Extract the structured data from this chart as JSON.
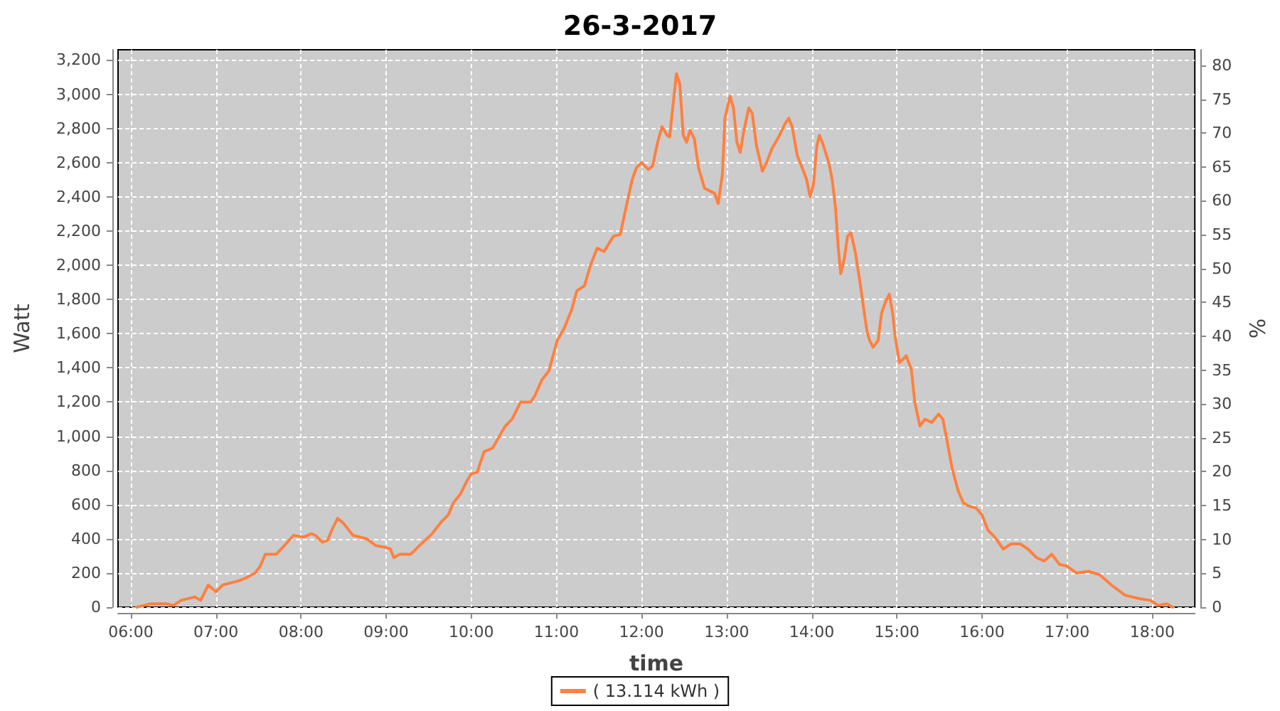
{
  "chart_data": {
    "type": "line",
    "title": "26-3-2017",
    "xlabel": "time",
    "ylabel": "Watt",
    "y2label": "%",
    "xlim": [
      5.85,
      18.5
    ],
    "xticks": [
      {
        "value": 6,
        "label": "06:00"
      },
      {
        "value": 7,
        "label": "07:00"
      },
      {
        "value": 8,
        "label": "08:00"
      },
      {
        "value": 9,
        "label": "09:00"
      },
      {
        "value": 10,
        "label": "10:00"
      },
      {
        "value": 11,
        "label": "11:00"
      },
      {
        "value": 12,
        "label": "12:00"
      },
      {
        "value": 13,
        "label": "13:00"
      },
      {
        "value": 14,
        "label": "14:00"
      },
      {
        "value": 15,
        "label": "15:00"
      },
      {
        "value": 16,
        "label": "16:00"
      },
      {
        "value": 17,
        "label": "17:00"
      },
      {
        "value": 18,
        "label": "18:00"
      }
    ],
    "ylim": [
      0,
      3260
    ],
    "yticks": [
      0,
      200,
      400,
      600,
      800,
      {
        "value": 1000,
        "label": "1,000"
      },
      {
        "value": 1200,
        "label": "1,200"
      },
      {
        "value": 1400,
        "label": "1,400"
      },
      {
        "value": 1600,
        "label": "1,600"
      },
      {
        "value": 1800,
        "label": "1,800"
      },
      {
        "value": 2000,
        "label": "2,000"
      },
      {
        "value": 2200,
        "label": "2,200"
      },
      {
        "value": 2400,
        "label": "2,400"
      },
      {
        "value": 2600,
        "label": "2,600"
      },
      {
        "value": 2800,
        "label": "2,800"
      },
      {
        "value": 3000,
        "label": "3,000"
      },
      {
        "value": 3200,
        "label": "3,200"
      }
    ],
    "y2lim": [
      0,
      82.3
    ],
    "y2ticks": [
      0,
      5,
      10,
      15,
      20,
      25,
      30,
      35,
      40,
      45,
      50,
      55,
      60,
      65,
      70,
      75,
      80
    ],
    "grid": true,
    "legend": "bottom",
    "x": [
      6.07,
      6.23,
      6.42,
      6.5,
      6.59,
      6.75,
      6.82,
      6.91,
      7.0,
      7.08,
      7.24,
      7.35,
      7.46,
      7.52,
      7.58,
      7.71,
      7.84,
      7.91,
      8.03,
      8.12,
      8.17,
      8.25,
      8.31,
      8.36,
      8.43,
      8.5,
      8.61,
      8.77,
      8.88,
      8.99,
      9.05,
      9.09,
      9.16,
      9.29,
      9.37,
      9.54,
      9.65,
      9.73,
      9.79,
      9.87,
      9.95,
      10.0,
      10.07,
      10.15,
      10.25,
      10.33,
      10.4,
      10.48,
      10.58,
      10.7,
      10.75,
      10.83,
      10.91,
      11.01,
      11.09,
      11.18,
      11.24,
      11.33,
      11.4,
      11.48,
      11.56,
      11.67,
      11.75,
      11.81,
      11.89,
      11.94,
      12.0,
      12.08,
      12.13,
      12.19,
      12.24,
      12.3,
      12.33,
      12.36,
      12.41,
      12.45,
      12.49,
      12.53,
      12.57,
      12.62,
      12.67,
      12.74,
      12.82,
      12.86,
      12.9,
      12.95,
      12.98,
      13.04,
      13.08,
      13.12,
      13.16,
      13.2,
      13.26,
      13.3,
      13.35,
      13.42,
      13.47,
      13.53,
      13.61,
      13.69,
      13.73,
      13.77,
      13.83,
      13.88,
      13.94,
      13.98,
      14.02,
      14.06,
      14.09,
      14.13,
      14.2,
      14.24,
      14.28,
      14.31,
      14.34,
      14.38,
      14.42,
      14.46,
      14.51,
      14.57,
      14.62,
      14.65,
      14.68,
      14.72,
      14.78,
      14.82,
      14.87,
      14.91,
      14.95,
      14.98,
      15.03,
      15.11,
      15.17,
      15.21,
      15.27,
      15.33,
      15.41,
      15.49,
      15.54,
      15.59,
      15.65,
      15.72,
      15.78,
      15.85,
      15.93,
      16.0,
      16.07,
      16.15,
      16.25,
      16.34,
      16.45,
      16.54,
      16.64,
      16.73,
      16.82,
      16.91,
      17.0,
      17.11,
      17.25,
      17.38,
      17.52,
      17.68,
      17.85,
      17.98,
      18.07,
      18.17,
      18.24
    ],
    "series": [
      {
        "name": "( 13.114 kWh )",
        "color": "#ff8040",
        "values": [
          0,
          20,
          20,
          10,
          40,
          60,
          40,
          130,
          90,
          130,
          150,
          170,
          200,
          240,
          310,
          310,
          380,
          420,
          410,
          430,
          420,
          380,
          390,
          450,
          520,
          490,
          420,
          400,
          360,
          350,
          340,
          290,
          310,
          310,
          350,
          430,
          500,
          540,
          610,
          660,
          740,
          780,
          790,
          910,
          930,
          1000,
          1060,
          1100,
          1200,
          1200,
          1240,
          1330,
          1380,
          1560,
          1630,
          1740,
          1850,
          1880,
          2000,
          2100,
          2080,
          2170,
          2180,
          2320,
          2500,
          2570,
          2600,
          2560,
          2580,
          2720,
          2810,
          2760,
          2750,
          2890,
          3120,
          3060,
          2760,
          2720,
          2790,
          2740,
          2570,
          2450,
          2430,
          2420,
          2360,
          2530,
          2860,
          2990,
          2920,
          2720,
          2660,
          2780,
          2920,
          2890,
          2700,
          2550,
          2600,
          2680,
          2750,
          2830,
          2860,
          2810,
          2640,
          2580,
          2500,
          2400,
          2470,
          2700,
          2760,
          2710,
          2600,
          2500,
          2330,
          2110,
          1950,
          2030,
          2170,
          2190,
          2080,
          1890,
          1710,
          1610,
          1560,
          1520,
          1560,
          1720,
          1790,
          1830,
          1720,
          1580,
          1430,
          1470,
          1390,
          1200,
          1060,
          1100,
          1080,
          1130,
          1100,
          970,
          810,
          680,
          610,
          590,
          580,
          540,
          450,
          410,
          340,
          370,
          370,
          340,
          290,
          270,
          310,
          250,
          240,
          200,
          210,
          190,
          130,
          70,
          50,
          40,
          10,
          20,
          0
        ]
      }
    ]
  }
}
